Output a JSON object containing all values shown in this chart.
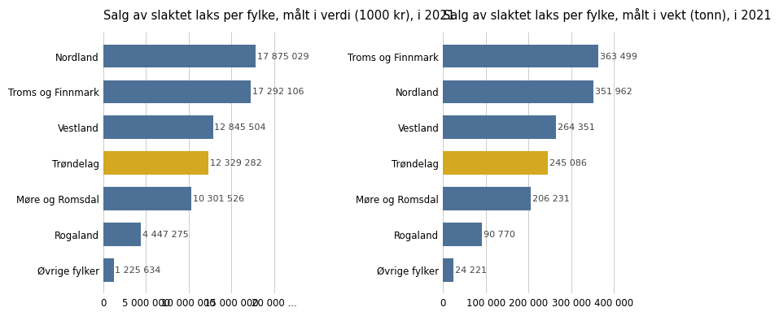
{
  "left": {
    "title": "Salg av slaktet laks per fylke, målt i verdi (1000 kr), i 2021",
    "categories": [
      "Nordland",
      "Troms og Finnmark",
      "Vestland",
      "Trøndelag",
      "Møre og Romsdal",
      "Rogaland",
      "Øvrige fylker"
    ],
    "values": [
      17875029,
      17292106,
      12845504,
      12329282,
      10301526,
      4447275,
      1225634
    ],
    "colors": [
      "#4d7196",
      "#4d7196",
      "#4d7196",
      "#d4a820",
      "#4d7196",
      "#4d7196",
      "#4d7196"
    ],
    "labels": [
      "17 875 029",
      "17 292 106",
      "12 845 504",
      "12 329 282",
      "10 301 526",
      "4 447 275",
      "1 225 634"
    ],
    "xlim": [
      0,
      20500000
    ],
    "xticks": [
      0,
      5000000,
      10000000,
      15000000,
      20000000
    ],
    "xticklabels": [
      "0",
      "5 000 000",
      "10 000 000",
      "15 000 000",
      "20 000 ..."
    ]
  },
  "right": {
    "title": "Salg av slaktet laks per fylke, målt i vekt (tonn), i 2021",
    "categories": [
      "Troms og Finnmark",
      "Nordland",
      "Vestland",
      "Trøndelag",
      "Møre og Romsdal",
      "Rogaland",
      "Øvrige fylker"
    ],
    "values": [
      363499,
      351962,
      264351,
      245086,
      206231,
      90770,
      24221
    ],
    "colors": [
      "#4d7196",
      "#4d7196",
      "#4d7196",
      "#d4a820",
      "#4d7196",
      "#4d7196",
      "#4d7196"
    ],
    "labels": [
      "363 499",
      "351 962",
      "264 351",
      "245 086",
      "206 231",
      "90 770",
      "24 221"
    ],
    "xlim": [
      0,
      410000
    ],
    "xticks": [
      0,
      100000,
      200000,
      300000,
      400000
    ],
    "xticklabels": [
      "0",
      "100 000",
      "200 000",
      "300 000",
      "400 000"
    ]
  },
  "bar_height": 0.65,
  "label_fontsize": 8.0,
  "title_fontsize": 10.5,
  "tick_fontsize": 8.5,
  "ytick_fontsize": 8.5,
  "bg_color": "#ffffff",
  "bar_label_color": "#444444"
}
